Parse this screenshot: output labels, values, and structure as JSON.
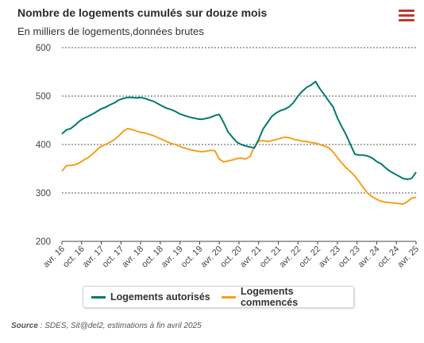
{
  "header": {
    "title": "Nombre de logements cumulés sur douze mois",
    "subtitle": "En milliers de logements,données brutes",
    "menu_icon": "hamburger-menu-icon",
    "menu_color": "#c0392b"
  },
  "source": {
    "label": "Source",
    "text": " : SDES, Sit@del2, estimations à fin avril 2025"
  },
  "chart_data": {
    "type": "line",
    "title": "Nombre de logements cumulés sur douze mois",
    "ylabel": "En milliers de logements,données brutes",
    "ylim": [
      200,
      600
    ],
    "yticks": [
      200,
      300,
      400,
      500,
      600
    ],
    "grid": true,
    "legend_position": "bottom",
    "x_start": "avr. 16",
    "x_end": "avr. 25",
    "xtick_labels": [
      "avr. 16",
      "oct. 16",
      "avr. 17",
      "oct. 17",
      "avr. 18",
      "oct. 18",
      "avr. 19",
      "oct. 19",
      "avr. 20",
      "oct. 20",
      "avr. 21",
      "oct. 21",
      "avr. 22",
      "oct. 22",
      "avr. 23",
      "oct. 23",
      "avr. 24",
      "oct. 24",
      "avr. 25"
    ],
    "series": [
      {
        "name": "Logements autorisés",
        "color": "#007a6e",
        "values": [
          422,
          430,
          433,
          440,
          448,
          454,
          458,
          463,
          468,
          474,
          477,
          482,
          486,
          492,
          495,
          497,
          497,
          496,
          497,
          495,
          492,
          489,
          484,
          479,
          475,
          472,
          468,
          463,
          460,
          457,
          455,
          453,
          452,
          454,
          456,
          460,
          462,
          445,
          426,
          415,
          405,
          400,
          397,
          395,
          393,
          410,
          432,
          445,
          458,
          465,
          470,
          473,
          478,
          487,
          500,
          510,
          518,
          523,
          530,
          515,
          503,
          490,
          478,
          455,
          437,
          420,
          400,
          380,
          378,
          378,
          376,
          372,
          365,
          360,
          352,
          345,
          340,
          335,
          330,
          328,
          330,
          343
        ]
      },
      {
        "name": "Logements commencés",
        "color": "#f5a11c",
        "values": [
          345,
          356,
          357,
          358,
          362,
          368,
          373,
          380,
          389,
          396,
          400,
          405,
          410,
          418,
          427,
          433,
          431,
          428,
          425,
          424,
          421,
          418,
          414,
          410,
          406,
          402,
          400,
          396,
          393,
          390,
          388,
          386,
          385,
          386,
          388,
          387,
          370,
          364,
          366,
          368,
          371,
          372,
          370,
          375,
          395,
          407,
          408,
          406,
          408,
          410,
          413,
          415,
          414,
          411,
          409,
          407,
          406,
          404,
          403,
          400,
          397,
          393,
          385,
          373,
          362,
          352,
          344,
          335,
          323,
          310,
          299,
          292,
          287,
          283,
          281,
          280,
          279,
          278,
          277,
          282,
          289,
          291
        ]
      }
    ]
  }
}
